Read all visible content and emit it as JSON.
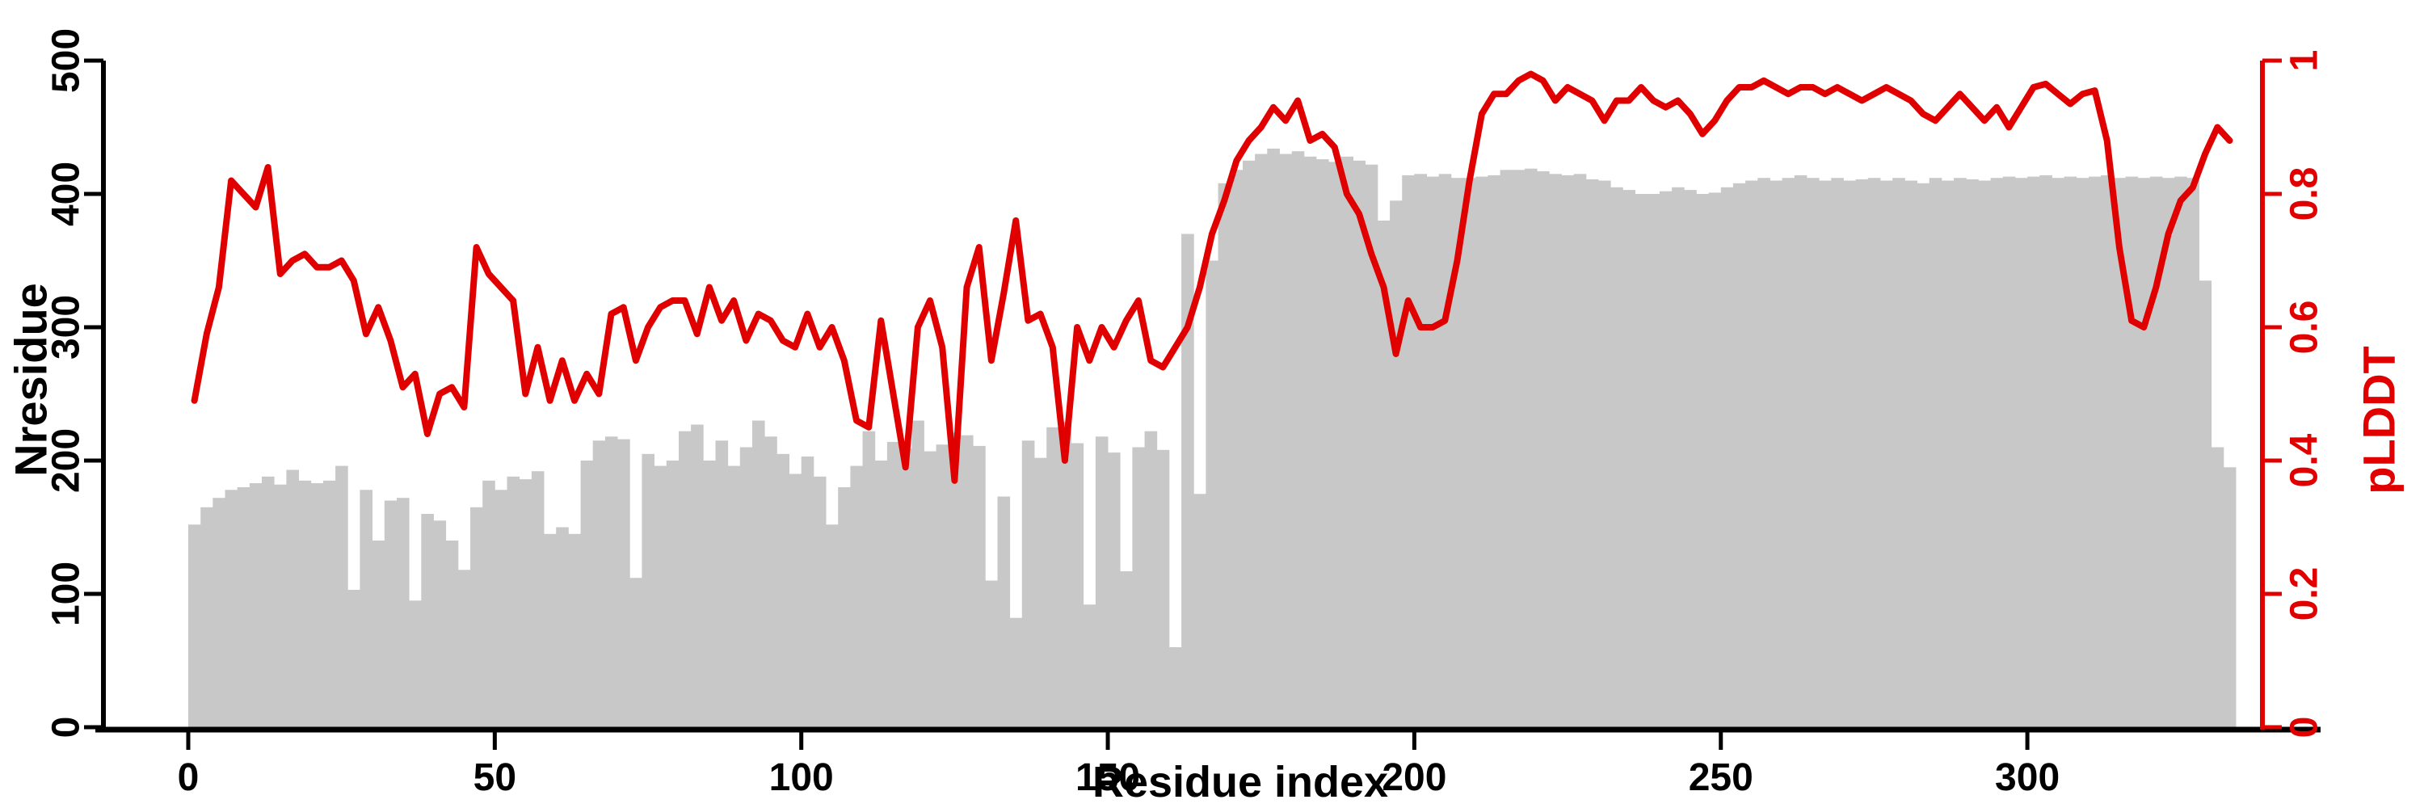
{
  "chart_data": {
    "type": "bar",
    "subtype": "dual-axis bar + line",
    "title": "",
    "xlabel": "Residue index",
    "ylabel_left": "Nresidue",
    "ylabel_right": "pLDDT",
    "x_start": 0,
    "x_step": 2,
    "xticks": [
      0,
      50,
      100,
      150,
      200,
      250,
      300
    ],
    "xlim": [
      0,
      334
    ],
    "yticks_left": [
      0,
      100,
      200,
      300,
      400,
      500
    ],
    "ylim_left": [
      0,
      500
    ],
    "yticks_right": [
      0,
      0.2,
      0.4,
      0.6,
      0.8,
      1
    ],
    "ylim_right": [
      0,
      1
    ],
    "grid": "off",
    "legend": "none",
    "bar_color": "#c8c8c8",
    "line_color": "#e00000",
    "axis_color": "#000000",
    "series": [
      {
        "name": "Nresidue",
        "type": "bar",
        "axis": "left",
        "values": [
          152,
          165,
          172,
          178,
          180,
          183,
          188,
          182,
          193,
          185,
          183,
          185,
          196,
          103,
          178,
          140,
          170,
          172,
          95,
          160,
          155,
          140,
          118,
          165,
          185,
          178,
          188,
          186,
          192,
          145,
          150,
          145,
          200,
          215,
          218,
          216,
          112,
          205,
          196,
          200,
          222,
          227,
          200,
          215,
          196,
          210,
          230,
          218,
          205,
          190,
          203,
          188,
          152,
          180,
          196,
          222,
          200,
          214,
          209,
          230,
          207,
          212,
          221,
          219,
          211,
          110,
          173,
          82,
          215,
          202,
          225,
          229,
          213,
          92,
          218,
          206,
          117,
          210,
          222,
          208,
          60,
          370,
          175,
          350,
          408,
          418,
          425,
          430,
          434,
          430,
          432,
          428,
          426,
          424,
          428,
          425,
          422,
          380,
          395,
          414,
          415,
          413,
          415,
          412,
          412,
          413,
          414,
          418,
          418,
          419,
          417,
          415,
          414,
          415,
          411,
          410,
          405,
          403,
          400,
          400,
          402,
          405,
          403,
          400,
          401,
          405,
          408,
          410,
          412,
          410,
          412,
          414,
          412,
          410,
          412,
          410,
          411,
          412,
          410,
          412,
          410,
          408,
          412,
          410,
          412,
          411,
          410,
          412,
          413,
          412,
          413,
          414,
          412,
          413,
          412,
          413,
          414,
          412,
          413,
          412,
          413,
          412,
          413,
          412,
          335,
          210,
          195
        ]
      },
      {
        "name": "pLDDT",
        "type": "line",
        "axis": "right",
        "values": [
          0.49,
          0.59,
          0.66,
          0.82,
          0.8,
          0.78,
          0.84,
          0.68,
          0.7,
          0.71,
          0.69,
          0.69,
          0.7,
          0.67,
          0.59,
          0.63,
          0.58,
          0.51,
          0.53,
          0.44,
          0.5,
          0.51,
          0.48,
          0.72,
          0.68,
          0.66,
          0.64,
          0.5,
          0.57,
          0.49,
          0.55,
          0.49,
          0.53,
          0.5,
          0.62,
          0.63,
          0.55,
          0.6,
          0.63,
          0.64,
          0.64,
          0.59,
          0.66,
          0.61,
          0.64,
          0.58,
          0.62,
          0.61,
          0.58,
          0.57,
          0.62,
          0.57,
          0.6,
          0.55,
          0.46,
          0.45,
          0.61,
          0.5,
          0.39,
          0.6,
          0.64,
          0.57,
          0.37,
          0.66,
          0.72,
          0.55,
          0.65,
          0.76,
          0.61,
          0.62,
          0.57,
          0.4,
          0.6,
          0.55,
          0.6,
          0.57,
          0.61,
          0.64,
          0.55,
          0.54,
          0.57,
          0.6,
          0.66,
          0.74,
          0.79,
          0.85,
          0.88,
          0.9,
          0.93,
          0.91,
          0.94,
          0.88,
          0.89,
          0.87,
          0.8,
          0.77,
          0.71,
          0.66,
          0.56,
          0.64,
          0.6,
          0.6,
          0.61,
          0.7,
          0.82,
          0.92,
          0.95,
          0.95,
          0.97,
          0.98,
          0.97,
          0.94,
          0.96,
          0.95,
          0.94,
          0.91,
          0.94,
          0.94,
          0.96,
          0.94,
          0.93,
          0.94,
          0.92,
          0.89,
          0.91,
          0.94,
          0.96,
          0.96,
          0.97,
          0.96,
          0.95,
          0.96,
          0.96,
          0.95,
          0.96,
          0.95,
          0.94,
          0.95,
          0.96,
          0.95,
          0.94,
          0.92,
          0.91,
          0.93,
          0.95,
          0.93,
          0.91,
          0.93,
          0.9,
          0.93,
          0.96,
          0.965,
          0.95,
          0.935,
          0.95,
          0.955,
          0.88,
          0.72,
          0.61,
          0.6,
          0.66,
          0.74,
          0.79,
          0.81,
          0.86,
          0.9,
          0.88
        ]
      }
    ]
  }
}
